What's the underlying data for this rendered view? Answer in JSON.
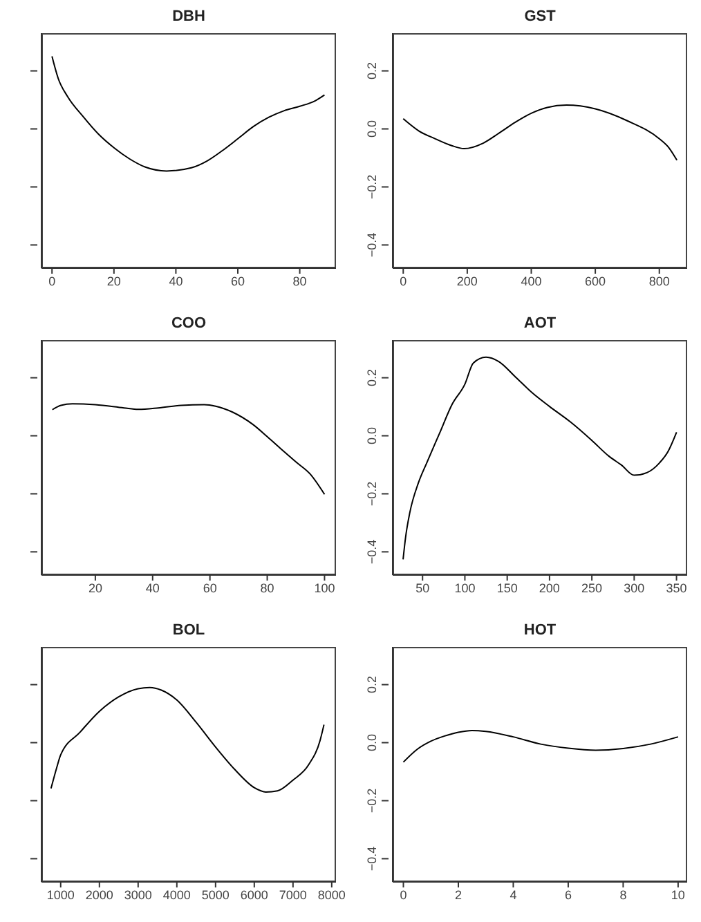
{
  "chart_data": [
    {
      "type": "line",
      "title": "DBH",
      "x": [
        0,
        2,
        5,
        10,
        15,
        20,
        25,
        30,
        37,
        45,
        50,
        55,
        60,
        65,
        70,
        75,
        80,
        85,
        88
      ],
      "series": [
        {
          "color": "#000000",
          "values": [
            0.25,
            0.174,
            0.112,
            0.043,
            -0.018,
            -0.065,
            -0.103,
            -0.131,
            -0.145,
            -0.134,
            -0.111,
            -0.075,
            -0.034,
            0.008,
            0.04,
            0.063,
            0.078,
            0.097,
            0.117
          ]
        }
      ],
      "xlim": [
        -3.4,
        91.7
      ],
      "xticks": [
        0,
        20,
        40,
        60,
        80
      ],
      "ylim": [
        -0.48,
        0.33
      ],
      "yticks": [
        {
          "value": -0.4,
          "label": null
        },
        {
          "value": -0.2,
          "label": null
        },
        {
          "value": 0,
          "label": null
        },
        {
          "value": 0.2,
          "label": null
        }
      ],
      "tick_labels": "x",
      "grid": false,
      "legend": false
    },
    {
      "type": "line",
      "title": "GST",
      "x": [
        0,
        50,
        100,
        150,
        190,
        250,
        300,
        350,
        400,
        450,
        510,
        600,
        700,
        800,
        830,
        855
      ],
      "series": [
        {
          "color": "#000000",
          "values": [
            0.035,
            -0.008,
            -0.034,
            -0.057,
            -0.068,
            -0.049,
            -0.014,
            0.023,
            0.054,
            0.074,
            0.082,
            0.069,
            0.028,
            -0.034,
            -0.065,
            -0.108
          ]
        }
      ],
      "xlim": [
        -33,
        887
      ],
      "xticks": [
        0,
        200,
        400,
        600,
        800
      ],
      "ylim": [
        -0.48,
        0.33
      ],
      "yticks": [
        {
          "value": -0.4,
          "label": "−0.4"
        },
        {
          "value": -0.2,
          "label": "−0.2"
        },
        {
          "value": 0,
          "label": "0.0"
        },
        {
          "value": 0.2,
          "label": "0.2"
        }
      ],
      "grid": false,
      "legend": false
    },
    {
      "type": "line",
      "title": "COO",
      "x": [
        5,
        8,
        12,
        20,
        30,
        35,
        42,
        50,
        58,
        62,
        68,
        75,
        80,
        85,
        90,
        95,
        100
      ],
      "series": [
        {
          "color": "#000000",
          "values": [
            0.09,
            0.105,
            0.11,
            0.107,
            0.096,
            0.091,
            0.096,
            0.105,
            0.107,
            0.102,
            0.081,
            0.039,
            -0.003,
            -0.047,
            -0.09,
            -0.132,
            -0.202
          ]
        }
      ],
      "xlim": [
        1.2,
        104
      ],
      "xticks": [
        20,
        40,
        60,
        80,
        100
      ],
      "ylim": [
        -0.48,
        0.33
      ],
      "yticks": [
        {
          "value": -0.4,
          "label": null
        },
        {
          "value": -0.2,
          "label": null
        },
        {
          "value": 0,
          "label": null
        },
        {
          "value": 0.2,
          "label": null
        }
      ],
      "tick_labels": "x",
      "grid": false,
      "legend": false
    },
    {
      "type": "line",
      "title": "AOT",
      "x": [
        27,
        30,
        35,
        45,
        55,
        70,
        85,
        100,
        110,
        125,
        140,
        160,
        180,
        200,
        225,
        250,
        270,
        285,
        300,
        315,
        330,
        340,
        350
      ],
      "series": [
        {
          "color": "#000000",
          "values": [
            -0.426,
            -0.349,
            -0.264,
            -0.163,
            -0.093,
            0.008,
            0.109,
            0.178,
            0.251,
            0.271,
            0.256,
            0.202,
            0.147,
            0.101,
            0.047,
            -0.016,
            -0.07,
            -0.101,
            -0.136,
            -0.127,
            -0.093,
            -0.054,
            0.012
          ]
        }
      ],
      "xlim": [
        14.7,
        362.6
      ],
      "xticks": [
        50,
        100,
        150,
        200,
        250,
        300,
        350
      ],
      "ylim": [
        -0.48,
        0.33
      ],
      "yticks": [
        {
          "value": -0.4,
          "label": "−0.4"
        },
        {
          "value": -0.2,
          "label": "−0.2"
        },
        {
          "value": 0,
          "label": "0.0"
        },
        {
          "value": 0.2,
          "label": "0.2"
        }
      ],
      "grid": false,
      "legend": false
    },
    {
      "type": "line",
      "title": "BOL",
      "x": [
        750,
        900,
        1000,
        1500,
        2000,
        2500,
        3000,
        3300,
        3600,
        4000,
        4500,
        5000,
        5500,
        6000,
        6300,
        6600,
        7000,
        7400,
        7700,
        7800
      ],
      "series": [
        {
          "color": "#000000",
          "values": [
            -0.158,
            -0.085,
            -0.042,
            0.036,
            0.108,
            0.158,
            0.186,
            0.19,
            0.181,
            0.147,
            0.07,
            -0.015,
            -0.093,
            -0.155,
            -0.17,
            -0.166,
            -0.129,
            -0.077,
            0.008,
            0.062
          ]
        }
      ],
      "xlim": [
        504,
        8110
      ],
      "xticks": [
        1000,
        2000,
        3000,
        4000,
        5000,
        6000,
        7000,
        8000
      ],
      "ylim": [
        -0.48,
        0.33
      ],
      "yticks": [
        {
          "value": -0.4,
          "label": null
        },
        {
          "value": -0.2,
          "label": null
        },
        {
          "value": 0,
          "label": null
        },
        {
          "value": 0.2,
          "label": null
        }
      ],
      "tick_labels": "x",
      "grid": false,
      "legend": false
    },
    {
      "type": "line",
      "title": "HOT",
      "x": [
        0,
        0.5,
        1,
        1.5,
        2,
        2.5,
        3,
        4,
        5,
        6,
        7,
        8,
        9,
        10
      ],
      "series": [
        {
          "color": "#000000",
          "values": [
            -0.067,
            -0.023,
            0.005,
            0.023,
            0.036,
            0.042,
            0.039,
            0.02,
            -0.005,
            -0.019,
            -0.026,
            -0.02,
            -0.005,
            0.02
          ]
        }
      ],
      "xlim": [
        -0.39,
        10.33
      ],
      "xticks": [
        0,
        2,
        4,
        6,
        8,
        10
      ],
      "ylim": [
        -0.48,
        0.33
      ],
      "yticks": [
        {
          "value": -0.4,
          "label": "−0.4"
        },
        {
          "value": -0.2,
          "label": "−0.2"
        },
        {
          "value": 0,
          "label": "0.0"
        },
        {
          "value": 0.2,
          "label": "0.2"
        }
      ],
      "grid": false,
      "legend": false
    }
  ]
}
